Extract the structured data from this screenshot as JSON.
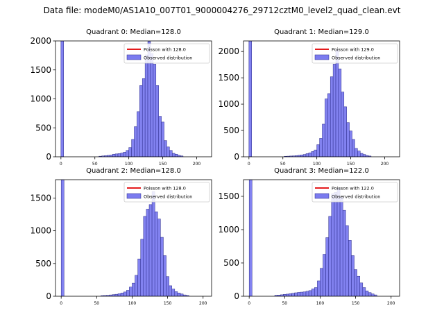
{
  "page_title": "Data file: modeM0/AS1A10_007T01_9000004276_29712cztM0_level2_quad_clean.evt",
  "colors": {
    "bar_fill": "#7b7bef",
    "bar_edge": "#2a2a88",
    "fit_line": "#e41a1c",
    "axis": "#000000"
  },
  "chart_data": [
    {
      "type": "bar",
      "title": "Quadrant 0: Median=128.0",
      "xlim": [
        -8,
        222
      ],
      "ylim": [
        0,
        2000
      ],
      "xticks": [
        0,
        50,
        100,
        150,
        200
      ],
      "yticks": [
        0,
        500,
        1000,
        1500,
        2000
      ],
      "bin_width": 4,
      "spike": {
        "x": 0,
        "value": 2000
      },
      "bins": [
        [
          56,
          10
        ],
        [
          60,
          15
        ],
        [
          64,
          20
        ],
        [
          68,
          25
        ],
        [
          72,
          30
        ],
        [
          76,
          45
        ],
        [
          80,
          50
        ],
        [
          84,
          55
        ],
        [
          88,
          65
        ],
        [
          92,
          80
        ],
        [
          96,
          110
        ],
        [
          100,
          160
        ],
        [
          104,
          300
        ],
        [
          108,
          520
        ],
        [
          112,
          780
        ],
        [
          116,
          1230
        ],
        [
          120,
          1350
        ],
        [
          124,
          1760
        ],
        [
          128,
          1990
        ],
        [
          132,
          1780
        ],
        [
          136,
          1600
        ],
        [
          140,
          1230
        ],
        [
          144,
          700
        ],
        [
          148,
          600
        ],
        [
          152,
          280
        ],
        [
          156,
          170
        ],
        [
          160,
          110
        ],
        [
          164,
          60
        ],
        [
          168,
          45
        ],
        [
          172,
          25
        ],
        [
          176,
          15
        ]
      ],
      "fit": {
        "mean": 128,
        "scale": 2010,
        "x_range": [
          0,
          214
        ]
      },
      "legend": [
        "Poisson with 128.0",
        "Observed distribution"
      ]
    },
    {
      "type": "bar",
      "title": "Quadrant 1: Median=129.0",
      "xlim": [
        -8,
        222
      ],
      "ylim": [
        0,
        2200
      ],
      "xticks": [
        0,
        50,
        100,
        150,
        200
      ],
      "yticks": [
        0,
        500,
        1000,
        1500,
        2000
      ],
      "bin_width": 4,
      "spike": {
        "x": 0,
        "value": 2200
      },
      "bins": [
        [
          52,
          10
        ],
        [
          56,
          12
        ],
        [
          60,
          15
        ],
        [
          64,
          18
        ],
        [
          68,
          22
        ],
        [
          72,
          28
        ],
        [
          76,
          35
        ],
        [
          80,
          45
        ],
        [
          84,
          60
        ],
        [
          88,
          75
        ],
        [
          92,
          100
        ],
        [
          96,
          130
        ],
        [
          100,
          230
        ],
        [
          104,
          350
        ],
        [
          108,
          620
        ],
        [
          112,
          1100
        ],
        [
          116,
          1200
        ],
        [
          120,
          1520
        ],
        [
          124,
          1760
        ],
        [
          128,
          2030
        ],
        [
          132,
          1670
        ],
        [
          136,
          1230
        ],
        [
          140,
          950
        ],
        [
          144,
          650
        ],
        [
          148,
          490
        ],
        [
          152,
          330
        ],
        [
          156,
          160
        ],
        [
          160,
          110
        ],
        [
          164,
          65
        ],
        [
          168,
          45
        ],
        [
          172,
          25
        ],
        [
          176,
          15
        ]
      ],
      "fit": {
        "mean": 129,
        "scale": 2100,
        "x_range": [
          0,
          214
        ]
      },
      "legend": [
        "Poisson with 129.0",
        "Observed distribution"
      ]
    },
    {
      "type": "bar",
      "title": "Quadrant 2: Median=128.0",
      "xlim": [
        -8,
        212
      ],
      "ylim": [
        0,
        1780
      ],
      "xticks": [
        0,
        50,
        100,
        150,
        200
      ],
      "yticks": [
        0,
        500,
        1000,
        1500
      ],
      "bin_width": 4,
      "spike": {
        "x": 0,
        "value": 1780
      },
      "bins": [
        [
          56,
          10
        ],
        [
          60,
          12
        ],
        [
          64,
          15
        ],
        [
          68,
          20
        ],
        [
          72,
          25
        ],
        [
          76,
          30
        ],
        [
          80,
          38
        ],
        [
          84,
          50
        ],
        [
          88,
          65
        ],
        [
          92,
          90
        ],
        [
          96,
          140
        ],
        [
          100,
          200
        ],
        [
          104,
          320
        ],
        [
          108,
          570
        ],
        [
          112,
          870
        ],
        [
          116,
          1220
        ],
        [
          120,
          1330
        ],
        [
          124,
          1400
        ],
        [
          128,
          1600
        ],
        [
          132,
          1290
        ],
        [
          136,
          1180
        ],
        [
          140,
          900
        ],
        [
          144,
          620
        ],
        [
          148,
          300
        ],
        [
          152,
          160
        ],
        [
          156,
          110
        ],
        [
          160,
          70
        ],
        [
          164,
          50
        ],
        [
          168,
          35
        ],
        [
          172,
          20
        ],
        [
          176,
          12
        ]
      ],
      "fit": {
        "mean": 128,
        "scale": 1660,
        "x_range": [
          0,
          208
        ]
      },
      "legend": [
        "Poisson with 128.0",
        "Observed distribution"
      ]
    },
    {
      "type": "bar",
      "title": "Quadrant 3: Median=122.0",
      "xlim": [
        -8,
        212
      ],
      "ylim": [
        0,
        1750
      ],
      "xticks": [
        0,
        50,
        100,
        150,
        200
      ],
      "yticks": [
        0,
        500,
        1000,
        1500
      ],
      "bin_width": 4,
      "spike": {
        "x": 0,
        "value": 1750
      },
      "bins": [
        [
          36,
          15
        ],
        [
          40,
          18
        ],
        [
          44,
          22
        ],
        [
          48,
          28
        ],
        [
          52,
          32
        ],
        [
          56,
          38
        ],
        [
          60,
          45
        ],
        [
          64,
          52
        ],
        [
          68,
          58
        ],
        [
          72,
          62
        ],
        [
          76,
          66
        ],
        [
          80,
          75
        ],
        [
          84,
          85
        ],
        [
          88,
          110
        ],
        [
          92,
          130
        ],
        [
          96,
          230
        ],
        [
          100,
          420
        ],
        [
          104,
          630
        ],
        [
          108,
          880
        ],
        [
          112,
          1200
        ],
        [
          116,
          1540
        ],
        [
          120,
          1560
        ],
        [
          124,
          1620
        ],
        [
          128,
          1490
        ],
        [
          132,
          1290
        ],
        [
          136,
          1060
        ],
        [
          140,
          840
        ],
        [
          144,
          610
        ],
        [
          148,
          400
        ],
        [
          152,
          300
        ],
        [
          156,
          200
        ],
        [
          160,
          130
        ],
        [
          164,
          80
        ],
        [
          168,
          55
        ],
        [
          172,
          35
        ],
        [
          176,
          20
        ]
      ],
      "fit": {
        "mean": 122,
        "scale": 1660,
        "x_range": [
          0,
          206
        ]
      },
      "legend": [
        "Poisson with 122.0",
        "Observed distribution"
      ]
    }
  ]
}
